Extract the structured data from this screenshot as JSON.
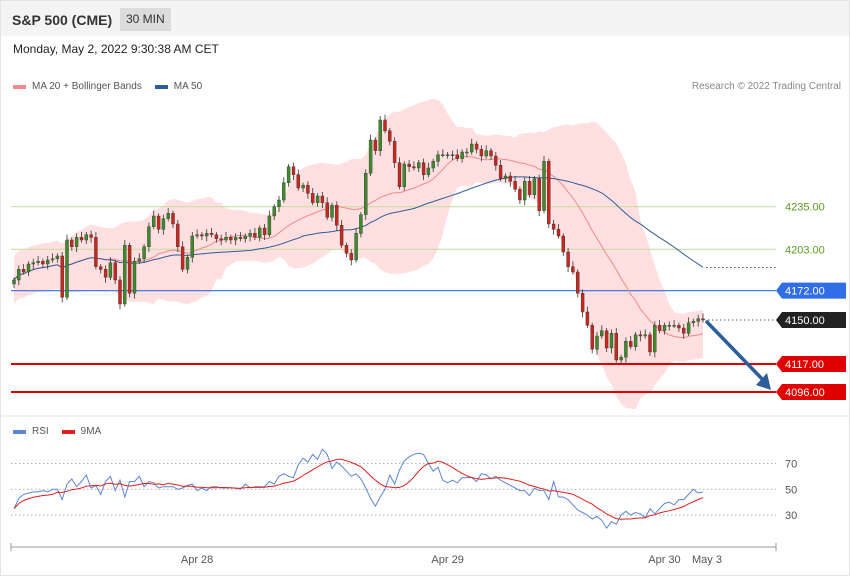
{
  "header": {
    "title": "S&P 500 (CME)",
    "interval": "30 MIN"
  },
  "datetime": "Monday, May 2, 2022 9:30:38 AM CET",
  "credit": "Research © 2022 Trading Central",
  "legend_price": [
    {
      "label": "MA 20 + Bollinger Bands",
      "color": "#f08a8a"
    },
    {
      "label": "MA 50",
      "color": "#2e5d9b"
    }
  ],
  "legend_rsi": [
    {
      "label": "RSI",
      "color": "#5b84d9"
    },
    {
      "label": "9MA",
      "color": "#e0201d"
    }
  ],
  "chart_data": {
    "type": "candlestick",
    "x_labels": [
      "Apr 28",
      "Apr 29",
      "Apr 30",
      "May 3"
    ],
    "price_ylim": [
      4087,
      4300
    ],
    "levels": [
      {
        "label": "4235.00",
        "value": 4235,
        "kind": "resistance",
        "color": "#c7dfa7",
        "text_color": "#5b9b1e"
      },
      {
        "label": "4203.00",
        "value": 4203,
        "kind": "resistance",
        "color": "#c7dfa7",
        "text_color": "#5b9b1e"
      },
      {
        "label": "4172.00",
        "value": 4172,
        "kind": "pivot",
        "color": "#2f6ee6",
        "text_color": "#ffffff"
      },
      {
        "label": "4150.00",
        "value": 4150,
        "kind": "last",
        "color": "#222222",
        "text_color": "#ffffff"
      },
      {
        "label": "4117.00",
        "value": 4117,
        "kind": "support",
        "color": "#e00000",
        "text_color": "#ffffff"
      },
      {
        "label": "4096.00",
        "value": 4096,
        "kind": "support",
        "color": "#e00000",
        "text_color": "#ffffff"
      }
    ],
    "closes": [
      4180,
      4188,
      4186,
      4192,
      4193,
      4194,
      4192,
      4195,
      4196,
      4198,
      4167,
      4210,
      4205,
      4212,
      4210,
      4214,
      4212,
      4190,
      4188,
      4182,
      4193,
      4180,
      4162,
      4206,
      4170,
      4194,
      4196,
      4205,
      4220,
      4228,
      4218,
      4226,
      4230,
      4222,
      4205,
      4188,
      4197,
      4213,
      4214,
      4213,
      4215,
      4214,
      4211,
      4210,
      4212,
      4210,
      4212,
      4211,
      4213,
      4215,
      4212,
      4219,
      4214,
      4228,
      4235,
      4240,
      4253,
      4265,
      4259,
      4249,
      4251,
      4245,
      4238,
      4243,
      4238,
      4227,
      4236,
      4221,
      4206,
      4200,
      4195,
      4215,
      4229,
      4260,
      4285,
      4277,
      4300,
      4292,
      4284,
      4268,
      4250,
      4267,
      4265,
      4264,
      4268,
      4259,
      4264,
      4269,
      4274,
      4274,
      4274,
      4274,
      4271,
      4276,
      4276,
      4282,
      4278,
      4273,
      4277,
      4273,
      4266,
      4256,
      4258,
      4254,
      4248,
      4240,
      4254,
      4244,
      4256,
      4232,
      4269,
      4222,
      4218,
      4213,
      4201,
      4190,
      4186,
      4170,
      4156,
      4146,
      4128,
      4138,
      4142,
      4129,
      4140,
      4120,
      4122,
      4134,
      4130,
      4139,
      4138,
      4139,
      4126,
      4146,
      4142,
      4146,
      4146,
      4146,
      4144,
      4140,
      4148,
      4149,
      4151,
      4150
    ],
    "rsi_ylim": [
      10,
      85
    ],
    "rsi_levels": [
      70,
      50,
      30
    ],
    "rsi": [
      35,
      43,
      46,
      47,
      48,
      48,
      49,
      48,
      50,
      50,
      42,
      54,
      58,
      52,
      56,
      61,
      51,
      53,
      46,
      56,
      60,
      49,
      57,
      44,
      56,
      56,
      60,
      52,
      56,
      55,
      51,
      52,
      52,
      52,
      50,
      51,
      53,
      54,
      49,
      51,
      49,
      52,
      52,
      51,
      51,
      51,
      51,
      50,
      54,
      51,
      52,
      52,
      52,
      56,
      54,
      60,
      62,
      60,
      59,
      69,
      74,
      71,
      77,
      73,
      81,
      77,
      66,
      71,
      68,
      64,
      60,
      62,
      58,
      51,
      43,
      37,
      44,
      50,
      61,
      54,
      65,
      72,
      75,
      77,
      78,
      77,
      70,
      64,
      67,
      57,
      55,
      57,
      55,
      59,
      59,
      59,
      56,
      62,
      61,
      58,
      60,
      57,
      55,
      53,
      51,
      49,
      49,
      45,
      51,
      49,
      49,
      42,
      56,
      44,
      44,
      42,
      38,
      34,
      32,
      30,
      27,
      29,
      26,
      20,
      25,
      23,
      30,
      33,
      30,
      32,
      31,
      28,
      35,
      31,
      35,
      39,
      40,
      38,
      42,
      42,
      46,
      50,
      47,
      48
    ]
  }
}
